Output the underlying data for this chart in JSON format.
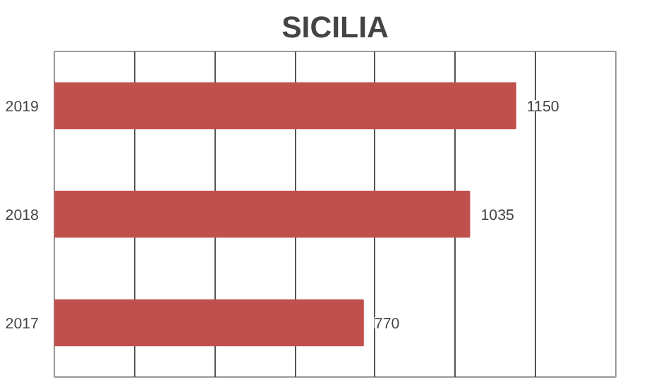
{
  "chart_data": {
    "type": "bar",
    "orientation": "horizontal",
    "title": "SICILIA",
    "categories": [
      "2019",
      "2018",
      "2017"
    ],
    "values": [
      1150,
      1035,
      770
    ],
    "color": "#c0504d",
    "data_labels": true,
    "xlim": [
      0,
      1400
    ],
    "xticks": [
      {
        "value": 0,
        "label": null
      },
      {
        "value": 200,
        "label": null
      },
      {
        "value": 400,
        "label": null
      },
      {
        "value": 600,
        "label": null
      },
      {
        "value": 800,
        "label": null
      },
      {
        "value": 1000,
        "label": null
      },
      {
        "value": 1200,
        "label": null
      },
      {
        "value": 1400,
        "label": null
      }
    ],
    "tick_labels": "y",
    "grid": "x"
  }
}
